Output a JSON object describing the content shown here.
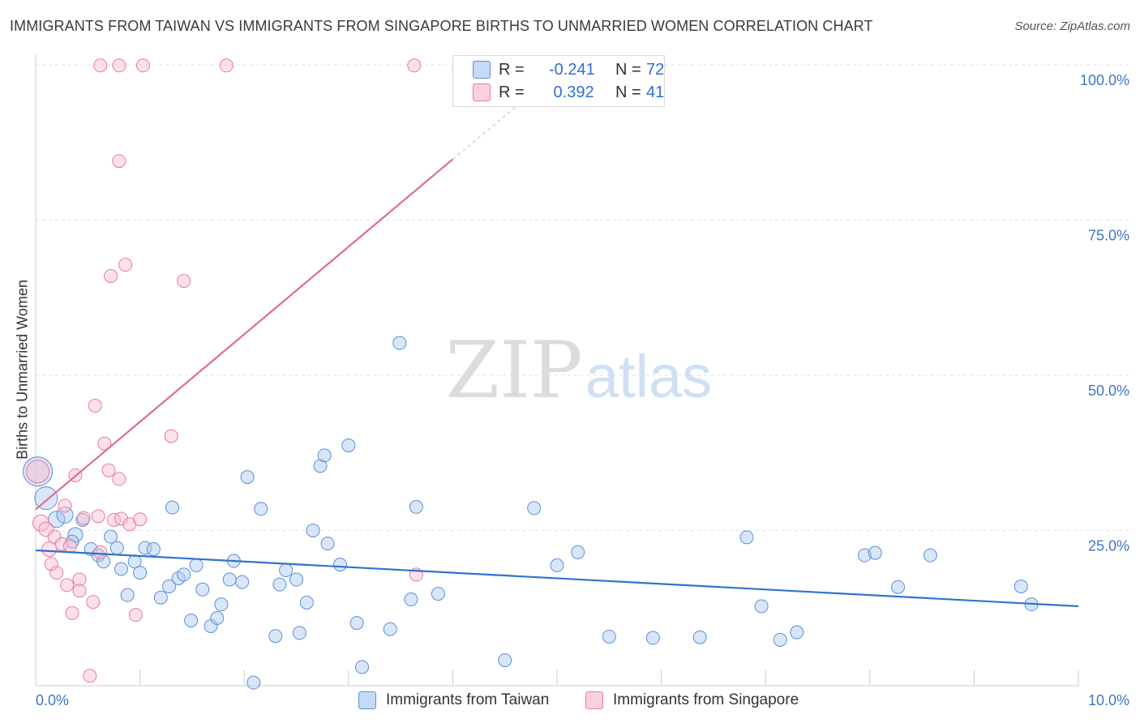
{
  "chart_data": {
    "type": "scatter",
    "title": "IMMIGRANTS FROM TAIWAN VS IMMIGRANTS FROM SINGAPORE BIRTHS TO UNMARRIED WOMEN CORRELATION CHART",
    "source": "Source: ZipAtlas.com",
    "xlabel": "",
    "ylabel": "Births to Unmarried Women",
    "xlim": [
      0,
      10
    ],
    "ylim": [
      0,
      100
    ],
    "x_tick_labels": [
      "0.0%",
      "10.0%"
    ],
    "y_tick_labels": [
      "25.0%",
      "50.0%",
      "75.0%",
      "100.0%"
    ],
    "y_ticks": [
      25,
      50,
      75,
      100
    ],
    "grid": true,
    "watermark": {
      "zip": "ZIP",
      "atlas": "atlas"
    },
    "legend": [
      {
        "name": "Immigrants from Taiwan",
        "r_label": "R =",
        "r_value": "-0.241",
        "n_label": "N =",
        "n_value": "72",
        "color": "#a8c8f0",
        "edge": "#5b8fd8"
      },
      {
        "name": "Immigrants from Singapore",
        "r_label": "R =",
        "r_value": " 0.392",
        "n_label": "N =",
        "n_value": "41",
        "color": "#f8bcd0",
        "edge": "#e87aa0"
      }
    ],
    "series": [
      {
        "name": "Immigrants from Taiwan",
        "fill": "#a8c8f0",
        "stroke": "#5b8fd8",
        "line_color": "#2f72d0",
        "trend": {
          "x0": 0.0,
          "y0": 21.8,
          "x1": 10.0,
          "y1": 12.8
        },
        "points": [
          [
            0.02,
            34.5,
            18
          ],
          [
            0.1,
            30.2,
            14
          ],
          [
            0.2,
            26.8,
            10
          ],
          [
            0.28,
            27.5,
            10
          ],
          [
            0.38,
            24.3,
            9
          ],
          [
            0.35,
            23.2,
            8
          ],
          [
            0.45,
            26.7,
            8
          ],
          [
            0.53,
            22.0,
            8
          ],
          [
            0.6,
            21.0,
            8
          ],
          [
            0.65,
            20.0,
            8
          ],
          [
            0.72,
            24.0,
            8
          ],
          [
            0.78,
            22.2,
            8
          ],
          [
            0.82,
            18.8,
            8
          ],
          [
            0.88,
            14.6,
            8
          ],
          [
            0.95,
            20.0,
            8
          ],
          [
            1.0,
            18.2,
            8
          ],
          [
            1.05,
            22.2,
            8
          ],
          [
            1.13,
            22.0,
            8
          ],
          [
            1.2,
            14.2,
            8
          ],
          [
            1.28,
            16.0,
            8
          ],
          [
            1.31,
            28.7,
            8
          ],
          [
            1.37,
            17.3,
            8
          ],
          [
            1.42,
            17.9,
            8
          ],
          [
            1.49,
            10.5,
            8
          ],
          [
            1.54,
            19.4,
            8
          ],
          [
            1.6,
            15.5,
            8
          ],
          [
            1.68,
            9.6,
            8
          ],
          [
            1.74,
            10.9,
            8
          ],
          [
            1.78,
            13.1,
            8
          ],
          [
            1.86,
            17.1,
            8
          ],
          [
            1.9,
            20.1,
            8
          ],
          [
            1.98,
            16.7,
            8
          ],
          [
            2.03,
            33.6,
            8
          ],
          [
            2.09,
            0.5,
            8
          ],
          [
            2.16,
            28.5,
            8
          ],
          [
            2.3,
            8.0,
            8
          ],
          [
            2.34,
            16.3,
            8
          ],
          [
            2.4,
            18.6,
            8
          ],
          [
            2.5,
            17.1,
            8
          ],
          [
            2.53,
            8.5,
            8
          ],
          [
            2.6,
            13.4,
            8
          ],
          [
            2.66,
            25.0,
            8
          ],
          [
            2.73,
            35.4,
            8
          ],
          [
            2.77,
            37.1,
            8
          ],
          [
            2.8,
            22.9,
            8
          ],
          [
            2.92,
            19.5,
            8
          ],
          [
            3.0,
            38.7,
            8
          ],
          [
            3.08,
            10.1,
            8
          ],
          [
            3.13,
            3.0,
            8
          ],
          [
            3.4,
            9.1,
            8
          ],
          [
            3.49,
            55.2,
            8
          ],
          [
            3.6,
            13.9,
            8
          ],
          [
            3.65,
            28.8,
            8
          ],
          [
            3.86,
            14.8,
            8
          ],
          [
            4.5,
            4.1,
            8
          ],
          [
            4.78,
            28.6,
            8
          ],
          [
            5.0,
            19.4,
            8
          ],
          [
            5.2,
            21.5,
            8
          ],
          [
            5.5,
            7.9,
            8
          ],
          [
            5.92,
            7.7,
            8
          ],
          [
            6.37,
            7.8,
            8
          ],
          [
            6.82,
            23.9,
            8
          ],
          [
            6.96,
            12.8,
            8
          ],
          [
            7.14,
            7.4,
            8
          ],
          [
            7.3,
            8.6,
            8
          ],
          [
            7.95,
            21.0,
            8
          ],
          [
            8.05,
            21.4,
            8
          ],
          [
            8.27,
            15.9,
            8
          ],
          [
            8.58,
            21.0,
            8
          ],
          [
            9.45,
            16.0,
            8
          ],
          [
            9.55,
            13.1,
            8
          ]
        ]
      },
      {
        "name": "Immigrants from Singapore",
        "fill": "#f8bcd0",
        "stroke": "#e87aa0",
        "line_color": "#e06a95",
        "trend": {
          "x0": 0.0,
          "y0": 28.4,
          "x1": 4.0,
          "y1": 84.8,
          "dash_to_x": 4.7,
          "dash_to_y": 94.6
        },
        "points": [
          [
            0.02,
            34.5,
            14
          ],
          [
            0.05,
            26.2,
            10
          ],
          [
            0.1,
            25.2,
            9
          ],
          [
            0.13,
            22.0,
            9
          ],
          [
            0.15,
            19.6,
            8
          ],
          [
            0.18,
            24.0,
            8
          ],
          [
            0.2,
            18.2,
            8
          ],
          [
            0.25,
            22.8,
            8
          ],
          [
            0.28,
            29.0,
            8
          ],
          [
            0.3,
            16.2,
            8
          ],
          [
            0.33,
            22.5,
            8
          ],
          [
            0.35,
            11.7,
            8
          ],
          [
            0.38,
            33.9,
            8
          ],
          [
            0.42,
            17.1,
            8
          ],
          [
            0.42,
            15.3,
            8
          ],
          [
            0.46,
            27.0,
            8
          ],
          [
            0.52,
            1.6,
            8
          ],
          [
            0.55,
            13.5,
            8
          ],
          [
            0.57,
            45.1,
            8
          ],
          [
            0.6,
            27.3,
            8
          ],
          [
            0.62,
            21.5,
            8
          ],
          [
            0.62,
            99.9,
            8
          ],
          [
            0.66,
            39.0,
            8
          ],
          [
            0.7,
            34.7,
            8
          ],
          [
            0.72,
            66.0,
            8
          ],
          [
            0.75,
            26.7,
            8
          ],
          [
            0.8,
            84.5,
            8
          ],
          [
            0.8,
            99.9,
            8
          ],
          [
            0.8,
            33.3,
            8
          ],
          [
            0.82,
            26.9,
            8
          ],
          [
            0.86,
            67.8,
            8
          ],
          [
            0.9,
            26.0,
            8
          ],
          [
            0.96,
            11.4,
            8
          ],
          [
            1.0,
            26.8,
            8
          ],
          [
            1.03,
            99.9,
            8
          ],
          [
            1.3,
            40.2,
            8
          ],
          [
            1.42,
            65.2,
            8
          ],
          [
            1.83,
            99.9,
            8
          ],
          [
            3.63,
            99.9,
            8
          ],
          [
            3.65,
            17.9,
            8
          ]
        ]
      }
    ]
  }
}
